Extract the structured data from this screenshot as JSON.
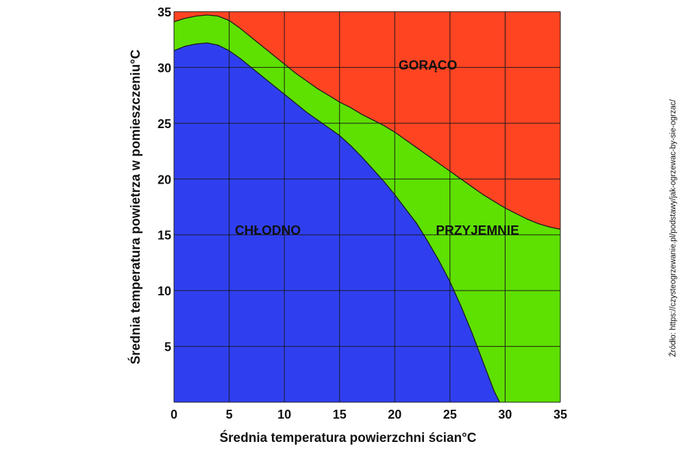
{
  "chart_data": {
    "type": "area",
    "xlabel": "Średnia temperatura powierzchni ścian°C",
    "ylabel": "Średnia temperatura powietrza w pomieszczeniu°C",
    "xlim": [
      0,
      35
    ],
    "ylim": [
      0,
      35
    ],
    "x_ticks": [
      0,
      5,
      10,
      15,
      20,
      25,
      30,
      35
    ],
    "y_ticks": [
      5,
      10,
      15,
      20,
      25,
      30,
      35
    ],
    "grid": true,
    "regions": [
      {
        "name": "CHŁODNO",
        "color": "#2f3ff0",
        "label_at": [
          8.5,
          15
        ]
      },
      {
        "name": "PRZYJEMNIE",
        "color": "#5ee000",
        "label_at": [
          27.5,
          15
        ]
      },
      {
        "name": "GORĄCO",
        "color": "#ff4422",
        "label_at": [
          23,
          29.8
        ]
      }
    ],
    "boundaries": [
      {
        "between": [
          "CHŁODNO",
          "PRZYJEMNIE"
        ],
        "x": [
          0,
          1,
          2,
          3,
          4,
          5,
          6,
          7,
          8,
          9,
          10,
          11,
          12,
          13,
          14,
          15,
          16,
          17,
          18,
          19,
          20,
          21,
          22,
          23,
          24,
          25,
          26,
          27,
          28,
          29,
          29.5
        ],
        "y": [
          31.5,
          31.9,
          32.1,
          32.2,
          32.0,
          31.5,
          30.8,
          30.0,
          29.2,
          28.4,
          27.6,
          26.8,
          26.0,
          25.3,
          24.6,
          23.9,
          23.0,
          22.0,
          20.9,
          19.8,
          18.6,
          17.3,
          16.0,
          14.4,
          12.7,
          10.8,
          8.6,
          6.2,
          3.6,
          1.0,
          0
        ]
      },
      {
        "between": [
          "PRZYJEMNIE",
          "GORĄCO"
        ],
        "x": [
          0,
          1,
          2,
          3,
          4,
          5,
          6,
          7,
          8,
          9,
          10,
          11,
          12,
          13,
          14,
          15,
          16,
          17,
          18,
          19,
          20,
          21,
          22,
          23,
          24,
          25,
          26,
          27,
          28,
          29,
          30,
          31,
          32,
          33,
          34,
          35
        ],
        "y": [
          34.1,
          34.4,
          34.6,
          34.7,
          34.6,
          34.2,
          33.5,
          32.7,
          31.9,
          31.1,
          30.3,
          29.5,
          28.8,
          28.1,
          27.5,
          26.9,
          26.4,
          25.8,
          25.3,
          24.8,
          24.2,
          23.5,
          22.8,
          22.1,
          21.4,
          20.7,
          20.0,
          19.3,
          18.6,
          18.0,
          17.4,
          16.9,
          16.4,
          16.0,
          15.7,
          15.5
        ]
      }
    ]
  },
  "source_note": "Źródło: https://czysteogrzewanie.pl/podstawy/jak-ogrzewac-by-sie-ogrzac/"
}
